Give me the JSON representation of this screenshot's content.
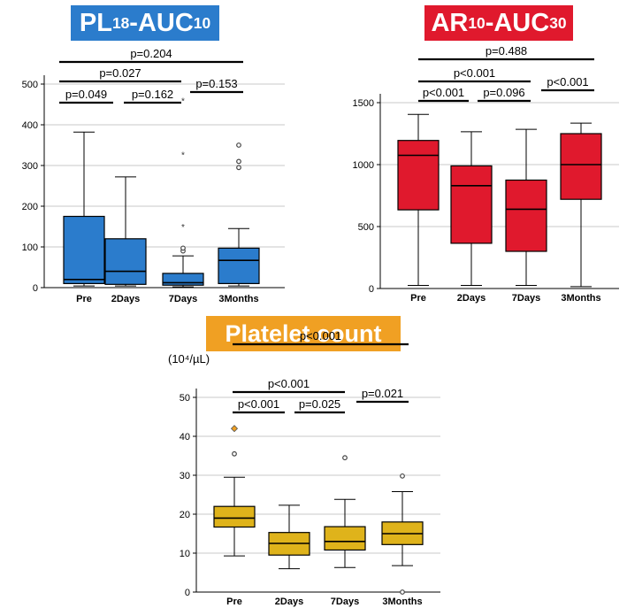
{
  "colors": {
    "blue": "#2b7ccc",
    "red": "#e0192d",
    "orange": "#f0a023",
    "gold": "#dfb31b"
  },
  "titles": {
    "pl": {
      "main": "PL",
      "sub1": "18",
      "mid": "-AUC",
      "sub2": "10"
    },
    "ar": {
      "main": "AR",
      "sub1": "10",
      "mid": "-AUC",
      "sub2": "30"
    },
    "platelet": "Platelet count"
  },
  "platelet_unit": "(10⁴/µL)",
  "chart_data": [
    {
      "type": "box",
      "categories": [
        "Pre",
        "2Days",
        "7Days",
        "3Months"
      ],
      "ylim": [
        0,
        520
      ],
      "yticks": [
        0,
        100,
        200,
        300,
        400,
        500
      ],
      "grid": true,
      "boxes": [
        {
          "whislo": 4,
          "q1": 10,
          "med": 20,
          "q3": 175,
          "whishi": 382,
          "fliers": []
        },
        {
          "whislo": 4,
          "q1": 8,
          "med": 40,
          "q3": 120,
          "whishi": 272,
          "fliers": []
        },
        {
          "whislo": 2,
          "q1": 6,
          "med": 12,
          "q3": 35,
          "whishi": 78,
          "fliers": [
            {
              "y": 90,
              "m": "o"
            },
            {
              "y": 97,
              "m": "o"
            },
            {
              "y": 150,
              "m": "*"
            },
            {
              "y": 327,
              "m": "*"
            },
            {
              "y": 460,
              "m": "*"
            }
          ]
        },
        {
          "whislo": 4,
          "q1": 10,
          "med": 67,
          "q3": 97,
          "whishi": 145,
          "fliers": [
            {
              "y": 295,
              "m": "o"
            },
            {
              "y": 310,
              "m": "o"
            },
            {
              "y": 350,
              "m": "o"
            }
          ]
        }
      ],
      "comparisons": [
        {
          "from": 0,
          "to": 3,
          "label": "p=0.204"
        },
        {
          "from": 0,
          "to": 2,
          "label": "p=0.027"
        },
        {
          "from": 0,
          "to": 1,
          "label": "p=0.049"
        },
        {
          "from": 1,
          "to": 2,
          "label": "p=0.162"
        },
        {
          "from": 2,
          "to": 3,
          "label": "p=0.153"
        }
      ]
    },
    {
      "type": "box",
      "categories": [
        "Pre",
        "2Days",
        "7Days",
        "3Months"
      ],
      "ylim": [
        0,
        1550
      ],
      "yticks": [
        0,
        500,
        1000,
        1500
      ],
      "grid": true,
      "boxes": [
        {
          "whislo": 25,
          "q1": 635,
          "med": 1075,
          "q3": 1195,
          "whishi": 1405,
          "fliers": []
        },
        {
          "whislo": 25,
          "q1": 365,
          "med": 830,
          "q3": 990,
          "whishi": 1265,
          "fliers": []
        },
        {
          "whislo": 25,
          "q1": 300,
          "med": 640,
          "q3": 875,
          "whishi": 1285,
          "fliers": []
        },
        {
          "whislo": 15,
          "q1": 720,
          "med": 1000,
          "q3": 1250,
          "whishi": 1335,
          "fliers": []
        }
      ],
      "comparisons": [
        {
          "from": 0,
          "to": 3,
          "label": "p=0.488"
        },
        {
          "from": 0,
          "to": 2,
          "label": "p<0.001"
        },
        {
          "from": 0,
          "to": 1,
          "label": "p<0.001"
        },
        {
          "from": 1,
          "to": 2,
          "label": "p=0.096"
        },
        {
          "from": 2,
          "to": 3,
          "label": "p<0.001"
        }
      ]
    },
    {
      "type": "box",
      "categories": [
        "Pre",
        "2Days",
        "7Days",
        "3Months"
      ],
      "ylim": [
        0,
        55
      ],
      "yticks": [
        0,
        10,
        20,
        30,
        40,
        50
      ],
      "grid": true,
      "boxes": [
        {
          "whislo": 9.3,
          "q1": 16.7,
          "med": 19,
          "q3": 22,
          "whishi": 29.5,
          "fliers": [
            {
              "y": 35.5,
              "m": "o"
            },
            {
              "y": 42,
              "m": "d"
            }
          ]
        },
        {
          "whislo": 6,
          "q1": 9.5,
          "med": 12.5,
          "q3": 15.3,
          "whishi": 22.3,
          "fliers": []
        },
        {
          "whislo": 6.3,
          "q1": 10.8,
          "med": 13,
          "q3": 16.8,
          "whishi": 23.8,
          "fliers": [
            {
              "y": 34.5,
              "m": "o"
            }
          ]
        },
        {
          "whislo": 6.8,
          "q1": 12.2,
          "med": 15,
          "q3": 18,
          "whishi": 25.8,
          "fliers": [
            {
              "y": 29.8,
              "m": "o"
            },
            {
              "y": 0,
              "m": "o"
            }
          ]
        }
      ],
      "comparisons": [
        {
          "from": 0,
          "to": 3,
          "label": "p<0.001"
        },
        {
          "from": 0,
          "to": 2,
          "label": "p<0.001"
        },
        {
          "from": 0,
          "to": 1,
          "label": "p<0.001"
        },
        {
          "from": 1,
          "to": 2,
          "label": "p=0.025"
        },
        {
          "from": 2,
          "to": 3,
          "label": "p=0.021"
        }
      ]
    }
  ]
}
